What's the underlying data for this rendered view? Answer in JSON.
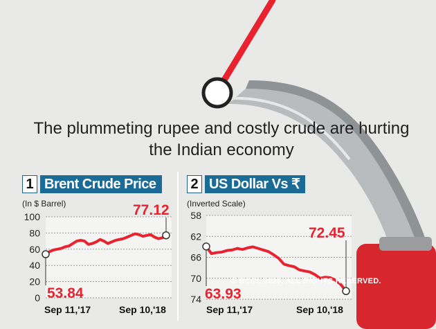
{
  "headline": "The plummeting rupee and costly crude are hurting the Indian economy",
  "copyright": "© BCCL 2026. ALL RIGHTS RESERVED.",
  "colors": {
    "accent": "#e8232f",
    "tag_bg": "#1b6b97",
    "background": "#e9e9e7"
  },
  "chart_data": [
    {
      "type": "line",
      "number": "1",
      "title": "Brent Crude Price",
      "ylabel": "(In $ Barrel)",
      "ylim": [
        0,
        100
      ],
      "yticks": [
        "100",
        "80",
        "60",
        "40",
        "20",
        "0"
      ],
      "xlabels": [
        "Sep 11,'17",
        "Sep 10,'18"
      ],
      "start_label": "53.84",
      "end_label": "77.12",
      "series": [
        {
          "values": [
            53.84,
            57,
            59,
            60,
            61,
            63,
            64,
            67,
            70,
            71,
            70,
            66,
            67,
            69,
            72,
            70,
            67,
            69,
            71,
            72,
            73,
            75,
            77,
            79,
            78,
            76,
            77,
            78,
            75,
            73,
            74,
            77.12
          ]
        }
      ]
    },
    {
      "type": "line",
      "number": "2",
      "title": "US Dollar Vs ₹",
      "ylabel": "(Inverted Scale)",
      "ylim": [
        58,
        74
      ],
      "inverted": true,
      "yticks": [
        "58",
        "62",
        "66",
        "70",
        "74"
      ],
      "xlabels": [
        "Sep 11,'17",
        "Sep 10,'18"
      ],
      "start_label": "63.93",
      "end_label": "72.45",
      "series": [
        {
          "values": [
            63.93,
            65.3,
            65.1,
            65.0,
            64.7,
            64.6,
            64.3,
            64.5,
            64.2,
            64.0,
            64.3,
            64.6,
            64.9,
            65.5,
            66.2,
            67.3,
            67.6,
            67.8,
            68.4,
            68.6,
            68.8,
            69.3,
            70.0,
            69.8,
            69.9,
            70.4,
            71.2,
            72.45
          ]
        }
      ]
    }
  ]
}
